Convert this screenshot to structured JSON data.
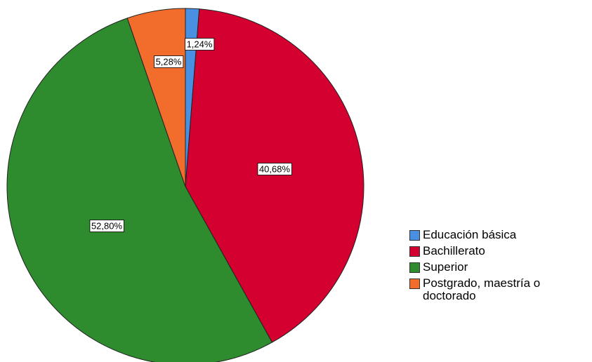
{
  "chart_data": {
    "type": "pie",
    "start_angle_deg": 0,
    "direction": "clockwise",
    "slices": [
      {
        "label": "Educación básica",
        "value": 1.24,
        "value_label": "1,24%",
        "color": "#4a90e2"
      },
      {
        "label": "Bachillerato",
        "value": 40.68,
        "value_label": "40,68%",
        "color": "#d4002f"
      },
      {
        "label": "Superior",
        "value": 52.8,
        "value_label": "52,80%",
        "color": "#2e8b2e"
      },
      {
        "label": "Postgrado, maestría o\ndoctorado",
        "value": 5.28,
        "value_label": "5,28%",
        "color": "#f26d2c"
      }
    ],
    "legend_position": "right"
  }
}
